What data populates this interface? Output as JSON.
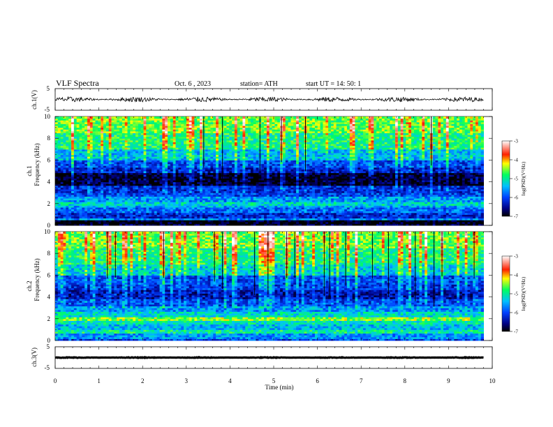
{
  "header": {
    "title": "VLF  Spectra",
    "date": "Oct. 6  , 2023",
    "station": "station= ATH",
    "start_ut": "start  UT  =    14: 50: 1"
  },
  "chart_data": [
    {
      "type": "line",
      "panel": "ch1-waveform",
      "ylabel": "ch.1(V)",
      "ylim": [
        -5,
        5
      ],
      "yticks": [
        "5",
        "-5"
      ],
      "xlim": [
        0,
        10
      ],
      "description_values": {
        "mean_v": 0,
        "amplitude_v": 1.2
      }
    },
    {
      "type": "heatmap",
      "panel": "ch1-spectrogram",
      "ylabel": "Frequency  (kHz)",
      "channel_label": "ch.1",
      "ylim": [
        0,
        10
      ],
      "yticks": [
        "0",
        "2",
        "4",
        "6",
        "8",
        "10"
      ],
      "xlim": [
        0,
        9.8
      ],
      "colorbar": {
        "label": "log(PSD)(V²/Hz)",
        "range": [
          -7,
          -3
        ],
        "ticks": [
          "-3",
          "-4",
          "-5",
          "-6",
          "-7"
        ]
      },
      "bands_khz": [
        {
          "f_low": 0.0,
          "f_high": 0.1,
          "level": -6.9
        },
        {
          "f_low": 0.1,
          "f_high": 0.25,
          "level": -6.6
        },
        {
          "f_low": 0.25,
          "f_high": 0.45,
          "level": -7.0
        },
        {
          "f_low": 0.45,
          "f_high": 0.7,
          "level": -5.6
        },
        {
          "f_low": 0.7,
          "f_high": 1.1,
          "level": -6.2
        },
        {
          "f_low": 1.1,
          "f_high": 1.6,
          "level": -5.8
        },
        {
          "f_low": 1.6,
          "f_high": 1.9,
          "level": -5.5
        },
        {
          "f_low": 1.9,
          "f_high": 2.2,
          "level": -5.2
        },
        {
          "f_low": 2.2,
          "f_high": 2.6,
          "level": -5.6
        },
        {
          "f_low": 2.6,
          "f_high": 3.0,
          "level": -6.0
        },
        {
          "f_low": 3.0,
          "f_high": 3.6,
          "level": -6.2
        },
        {
          "f_low": 3.6,
          "f_high": 4.8,
          "level": -6.9
        },
        {
          "f_low": 4.8,
          "f_high": 5.4,
          "level": -6.3
        },
        {
          "f_low": 5.4,
          "f_high": 6.0,
          "level": -6.0
        },
        {
          "f_low": 6.0,
          "f_high": 7.0,
          "level": -5.4
        },
        {
          "f_low": 7.0,
          "f_high": 8.5,
          "level": -4.9
        },
        {
          "f_low": 8.5,
          "f_high": 10.0,
          "level": -4.6
        }
      ]
    },
    {
      "type": "heatmap",
      "panel": "ch2-spectrogram",
      "ylabel": "Frequency  (kHz)",
      "channel_label": "ch.2",
      "ylim": [
        0,
        10
      ],
      "yticks": [
        "0",
        "2",
        "4",
        "6",
        "8",
        "10"
      ],
      "xlim": [
        0,
        9.8
      ],
      "colorbar": {
        "label": "log(PSD)(V²/Hz)",
        "range": [
          -7,
          -3
        ],
        "ticks": [
          "-3",
          "-4",
          "-5",
          "-6",
          "-7"
        ]
      },
      "bands_khz": [
        {
          "f_low": 0.0,
          "f_high": 0.2,
          "level": -6.0
        },
        {
          "f_low": 0.2,
          "f_high": 0.6,
          "level": -5.6
        },
        {
          "f_low": 0.6,
          "f_high": 1.0,
          "level": -5.0
        },
        {
          "f_low": 1.0,
          "f_high": 1.5,
          "level": -5.4
        },
        {
          "f_low": 1.5,
          "f_high": 1.8,
          "level": -5.1
        },
        {
          "f_low": 1.8,
          "f_high": 2.2,
          "level": -4.5
        },
        {
          "f_low": 2.2,
          "f_high": 2.6,
          "level": -5.2
        },
        {
          "f_low": 2.6,
          "f_high": 3.2,
          "level": -5.6
        },
        {
          "f_low": 3.2,
          "f_high": 3.8,
          "level": -6.0
        },
        {
          "f_low": 3.8,
          "f_high": 4.6,
          "level": -6.4
        },
        {
          "f_low": 4.6,
          "f_high": 5.2,
          "level": -6.1
        },
        {
          "f_low": 5.2,
          "f_high": 6.0,
          "level": -6.0
        },
        {
          "f_low": 6.0,
          "f_high": 7.0,
          "level": -5.3
        },
        {
          "f_low": 7.0,
          "f_high": 8.5,
          "level": -4.9
        },
        {
          "f_low": 8.5,
          "f_high": 10.0,
          "level": -4.6
        }
      ]
    },
    {
      "type": "line",
      "panel": "ch3-waveform",
      "ylabel": "ch.3(V)",
      "ylim": [
        -5,
        5
      ],
      "yticks": [
        "5",
        "-5"
      ],
      "xlim": [
        0,
        10
      ],
      "description_values": {
        "mean_v": 0,
        "amplitude_v": 0.15
      }
    }
  ],
  "xaxis": {
    "label": "Time  (min)",
    "ticks": [
      "0",
      "1",
      "2",
      "3",
      "4",
      "5",
      "6",
      "7",
      "8",
      "9",
      "10"
    ]
  }
}
